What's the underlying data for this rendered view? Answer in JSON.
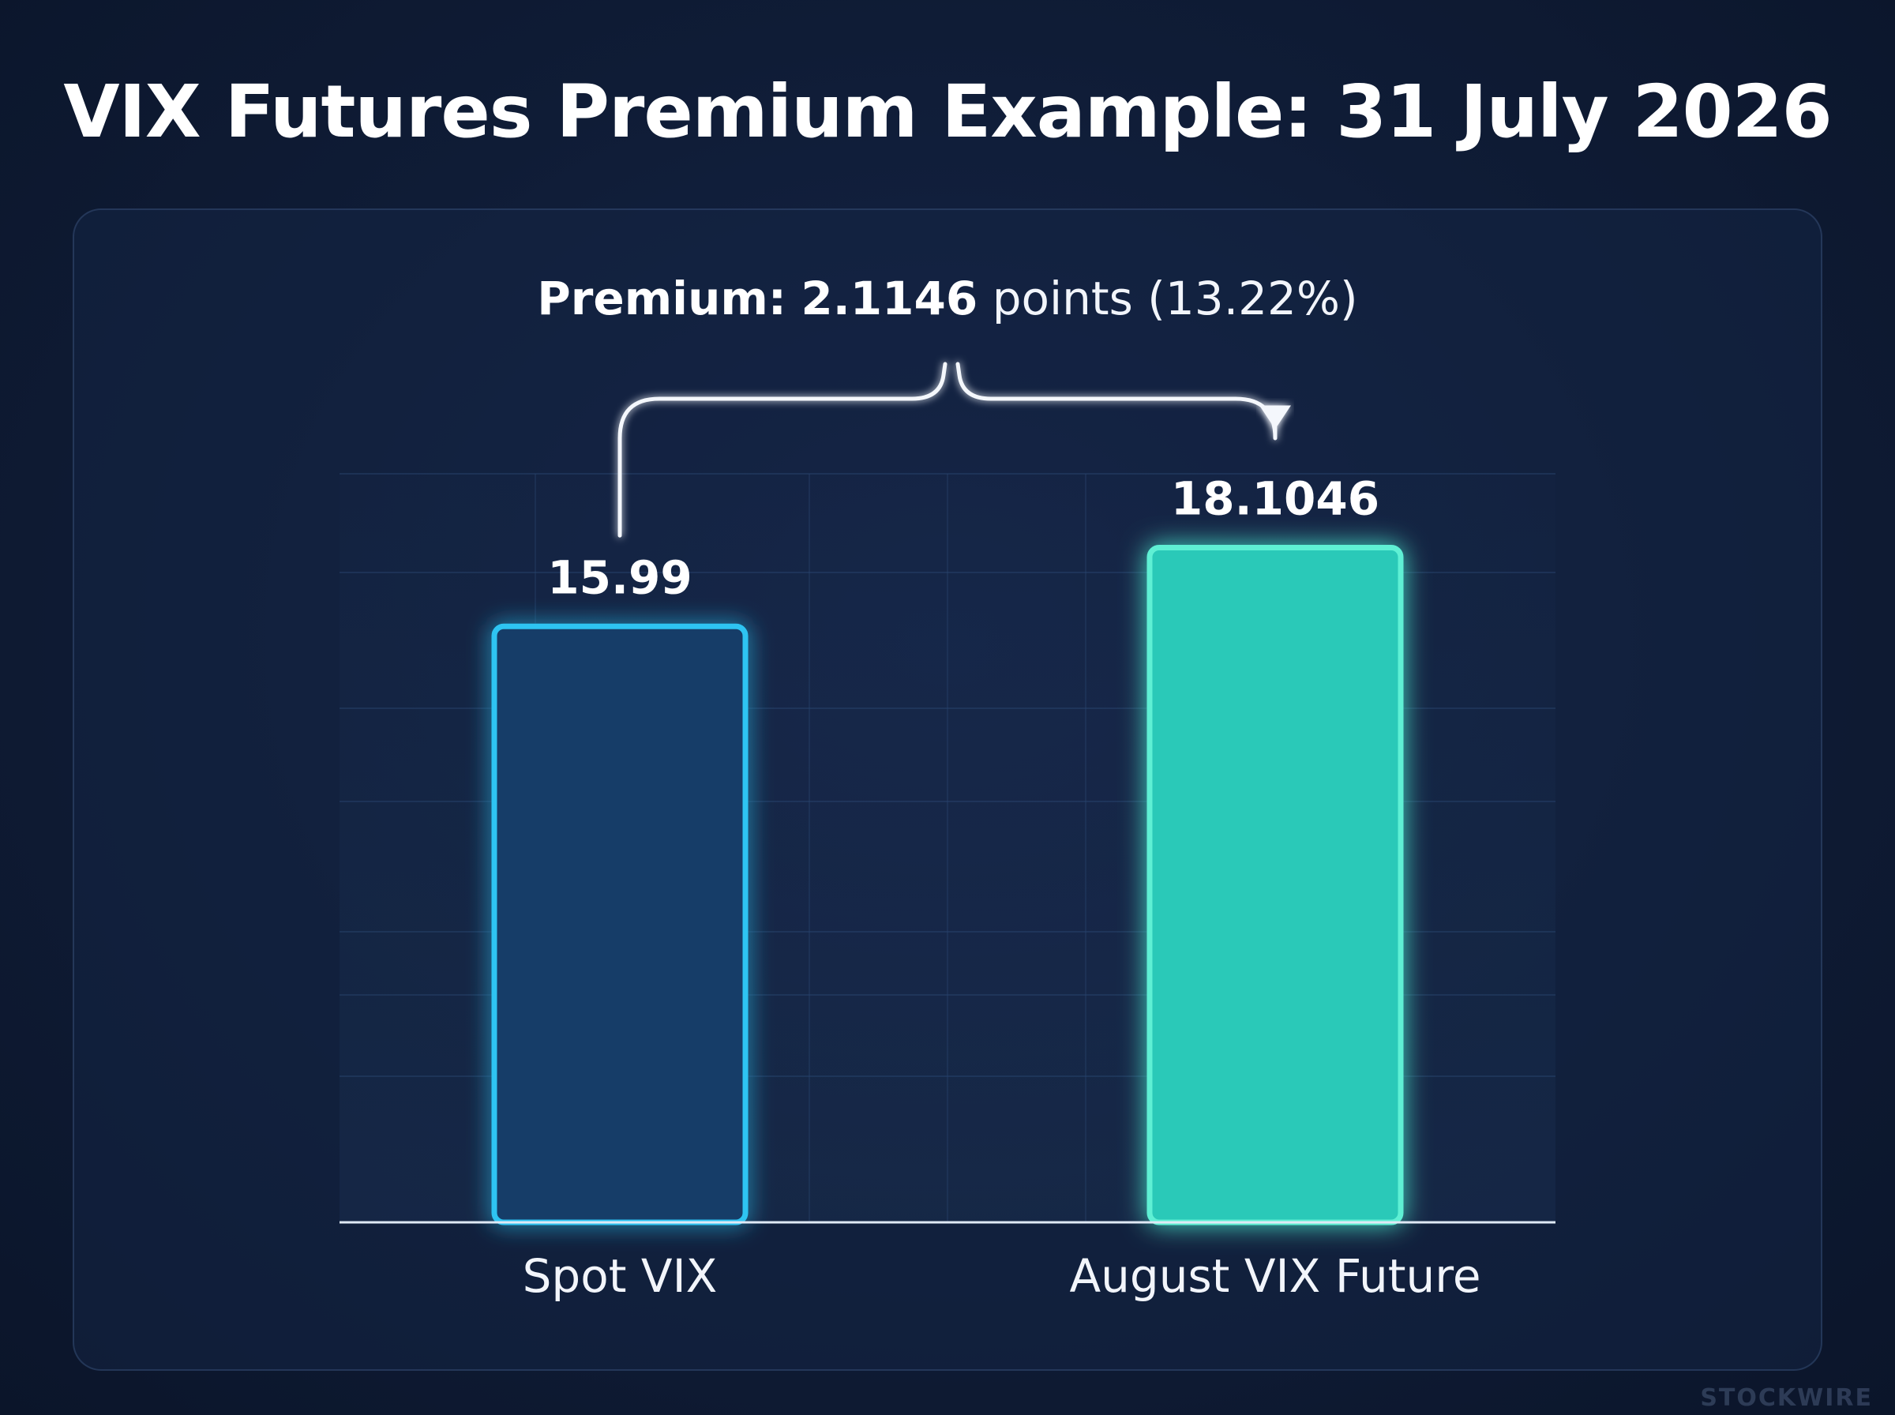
{
  "title": "VIX Futures Premium Example: 31 July 2026",
  "annotation": {
    "label": "Premium:",
    "value": "2.1146",
    "unit_text": "points",
    "percent_text": "(13.22%)"
  },
  "watermark": "STOCKWIRE",
  "colors": {
    "background": "#0f1c36",
    "spot_bar_fill": "#123e68",
    "spot_bar_stroke": "#2fc4f2",
    "future_bar_fill": "#2bc9b8",
    "future_bar_stroke": "#5ff0d4",
    "text": "#ffffff"
  },
  "chart_data": {
    "type": "bar",
    "categories": [
      "Spot VIX",
      "August VIX Future"
    ],
    "values": [
      15.99,
      18.1046
    ],
    "value_labels": [
      "15.99",
      "18.1046"
    ],
    "title": "VIX Futures Premium Example: 31 July 2026",
    "xlabel": "",
    "ylabel": "",
    "ylim": [
      0,
      21
    ],
    "grid": true,
    "legend": "none"
  }
}
